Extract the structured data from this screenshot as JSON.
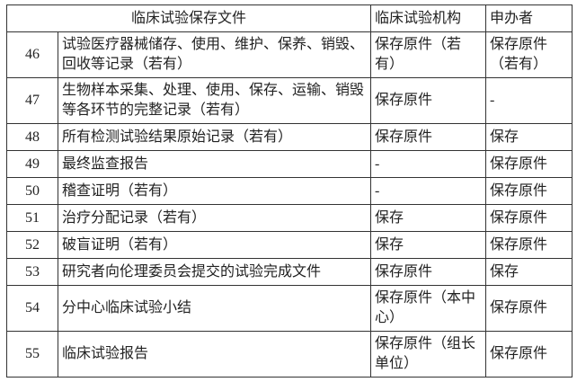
{
  "header": {
    "document": "临床试验保存文件",
    "institution": "临床试验机构",
    "sponsor": "申办者"
  },
  "rows": [
    {
      "no": "46",
      "document": "试验医疗器械储存、使用、维护、保养、销毁、回收等记录（若有）",
      "institution": "保存原件（若有）",
      "sponsor": "保存原件（若有）",
      "tall": true
    },
    {
      "no": "47",
      "document": "生物样本采集、处理、使用、保存、运输、销毁等各环节的完整记录（若有）",
      "institution": "保存原件",
      "sponsor": "-",
      "tall": true
    },
    {
      "no": "48",
      "document": "所有检测试验结果原始记录（若有）",
      "institution": "保存原件",
      "sponsor": "保存"
    },
    {
      "no": "49",
      "document": "最终监查报告",
      "institution": "-",
      "sponsor": "保存原件"
    },
    {
      "no": "50",
      "document": "稽查证明（若有）",
      "institution": "-",
      "sponsor": "保存原件"
    },
    {
      "no": "51",
      "document": "治疗分配记录（若有）",
      "institution": "保存",
      "sponsor": "保存原件"
    },
    {
      "no": "52",
      "document": "破盲证明（若有）",
      "institution": "保存",
      "sponsor": "保存原件"
    },
    {
      "no": "53",
      "document": "研究者向伦理委员会提交的试验完成文件",
      "institution": "保存原件",
      "sponsor": "保存"
    },
    {
      "no": "54",
      "document": "分中心临床试验小结",
      "institution": "保存原件（本中心）",
      "sponsor": "保存原件",
      "tall": true
    },
    {
      "no": "55",
      "document": "临床试验报告",
      "institution": "保存原件（组长单位）",
      "sponsor": "保存原件",
      "tall": true
    }
  ]
}
